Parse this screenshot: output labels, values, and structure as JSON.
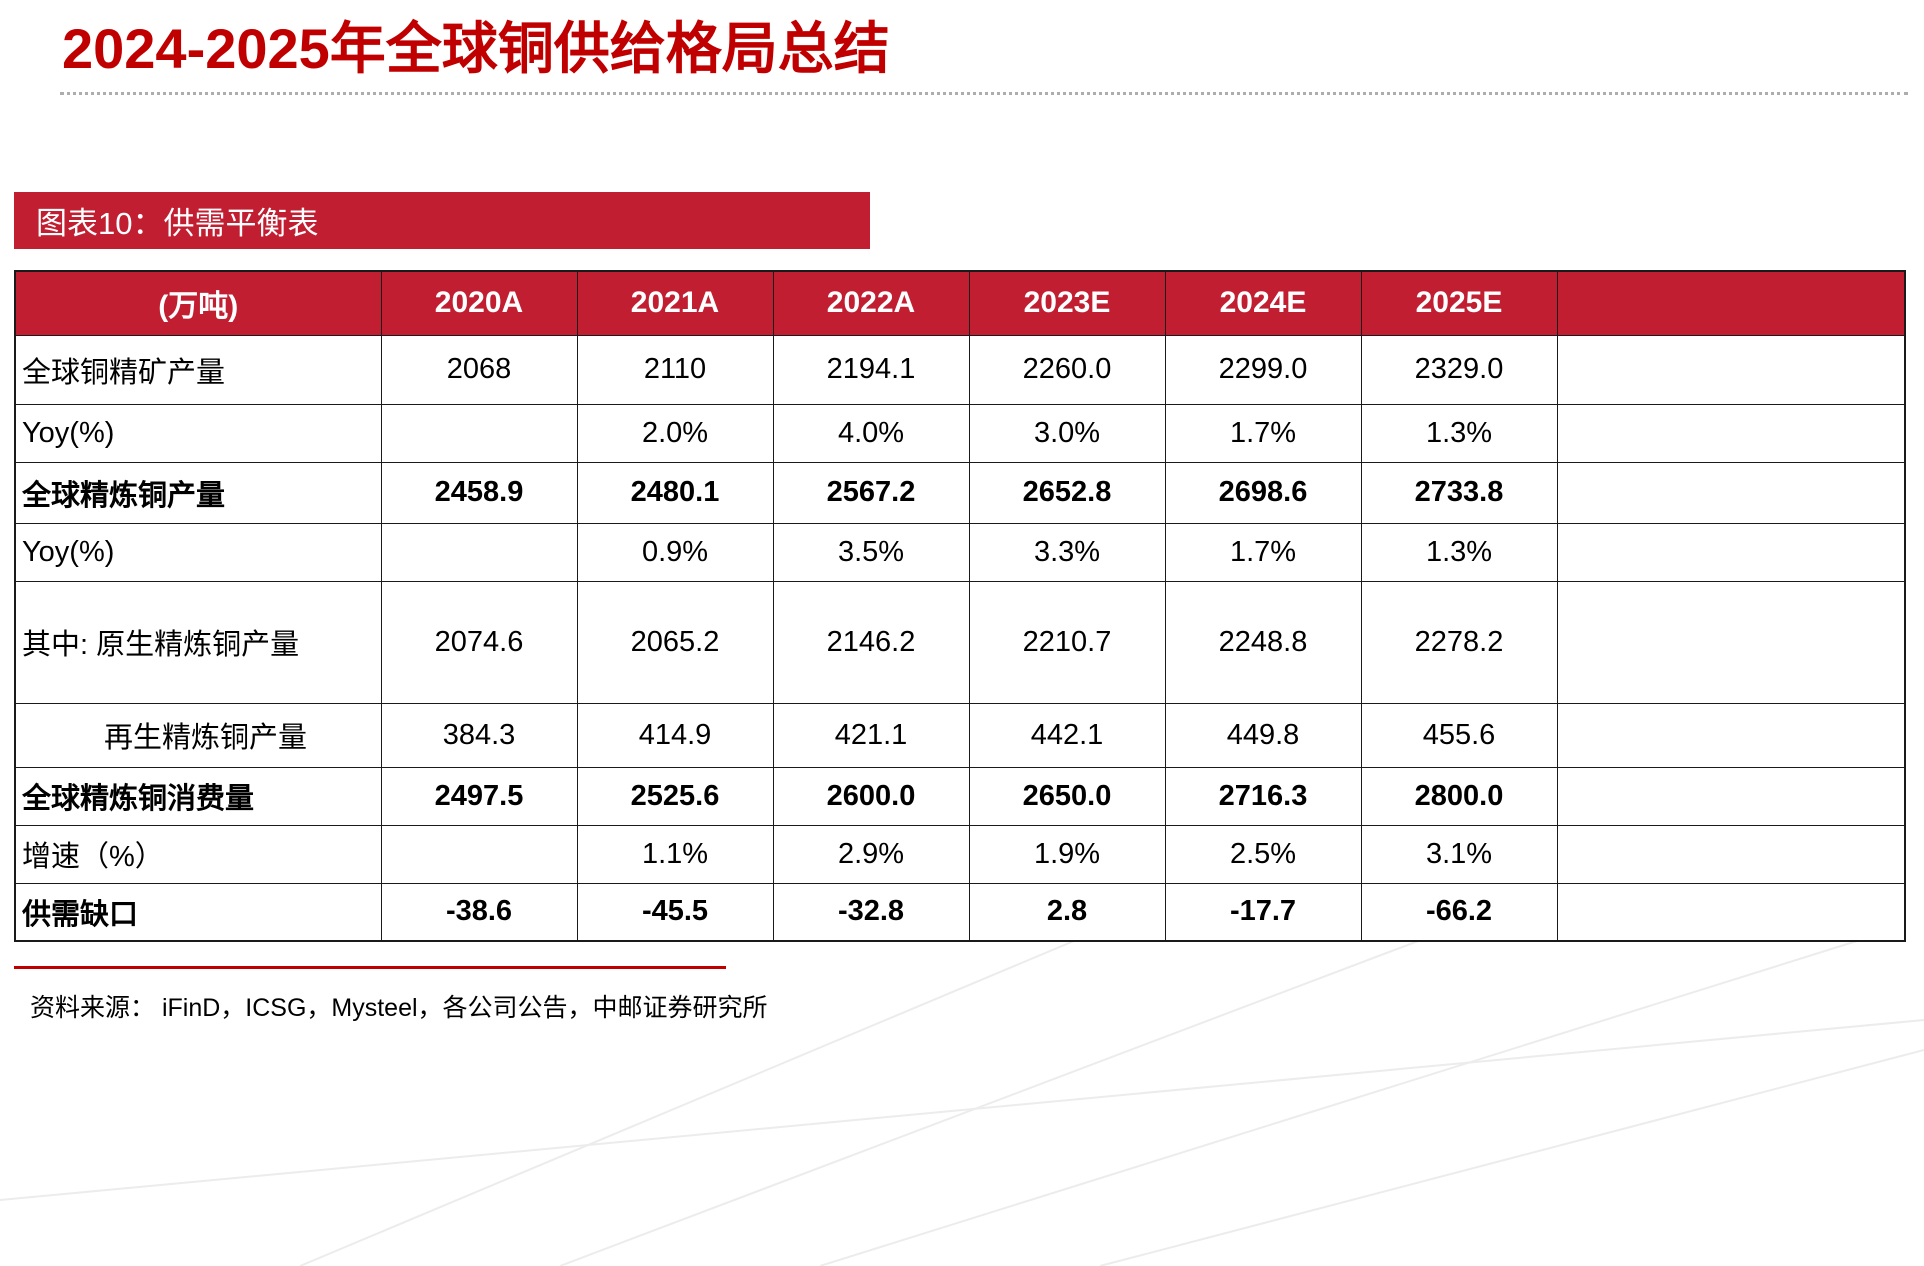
{
  "slide": {
    "title": "2024-2025年全球铜供给格局总结",
    "banner_label": "图表10：供需平衡表",
    "source_note": "资料来源：  iFinD，ICSG，Mysteel，各公司公告，中邮证券研究所"
  },
  "colors": {
    "title_red": "#C00000",
    "banner_red": "#C21E32",
    "table_header_red": "#C21E32",
    "border_dark": "#1a1a1a"
  },
  "table": {
    "unit_label": "(万吨)",
    "columns": [
      "2020A",
      "2021A",
      "2022A",
      "2023E",
      "2024E",
      "2025E"
    ],
    "rows": [
      {
        "label": "全球铜精矿产量",
        "bold": false,
        "indent": false,
        "values": [
          "2068",
          "2110",
          "2194.1",
          "2260.0",
          "2299.0",
          "2329.0"
        ]
      },
      {
        "label": "Yoy(%)",
        "bold": false,
        "indent": false,
        "values": [
          "",
          "2.0%",
          "4.0%",
          "3.0%",
          "1.7%",
          "1.3%"
        ]
      },
      {
        "label": "全球精炼铜产量",
        "bold": true,
        "indent": false,
        "values": [
          "2458.9",
          "2480.1",
          "2567.2",
          "2652.8",
          "2698.6",
          "2733.8"
        ]
      },
      {
        "label": "Yoy(%)",
        "bold": false,
        "indent": false,
        "values": [
          "",
          "0.9%",
          "3.5%",
          "3.3%",
          "1.7%",
          "1.3%"
        ]
      },
      {
        "label": "其中: 原生精炼铜产量",
        "bold": false,
        "indent": false,
        "values": [
          "2074.6",
          "2065.2",
          "2146.2",
          "2210.7",
          "2248.8",
          "2278.2"
        ]
      },
      {
        "label": "再生精炼铜产量",
        "bold": false,
        "indent": true,
        "values": [
          "384.3",
          "414.9",
          "421.1",
          "442.1",
          "449.8",
          "455.6"
        ]
      },
      {
        "label": "全球精炼铜消费量",
        "bold": true,
        "indent": false,
        "values": [
          "2497.5",
          "2525.6",
          "2600.0",
          "2650.0",
          "2716.3",
          "2800.0"
        ]
      },
      {
        "label": "增速（%）",
        "bold": false,
        "indent": false,
        "values": [
          "",
          "1.1%",
          "2.9%",
          "1.9%",
          "2.5%",
          "3.1%"
        ]
      },
      {
        "label": "供需缺口",
        "bold": true,
        "indent": false,
        "values": [
          "-38.6",
          "-45.5",
          "-32.8",
          "2.8",
          "-17.7",
          "-66.2"
        ]
      }
    ]
  }
}
